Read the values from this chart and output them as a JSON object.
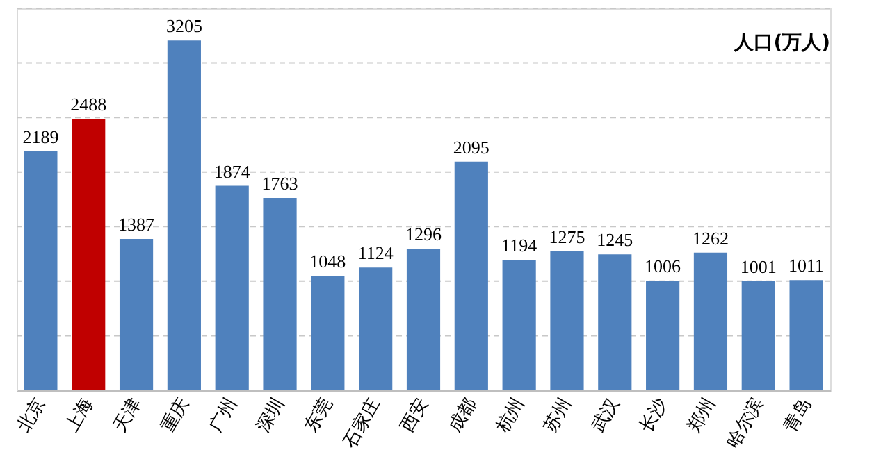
{
  "chart_data": {
    "type": "bar",
    "categories": [
      "北京",
      "上海",
      "天津",
      "重庆",
      "广州",
      "深圳",
      "东莞",
      "石家庄",
      "西安",
      "成都",
      "杭州",
      "苏州",
      "武汉",
      "长沙",
      "郑州",
      "哈尔滨",
      "青岛"
    ],
    "values": [
      2189,
      2488,
      1387,
      3205,
      1874,
      1763,
      1048,
      1124,
      1296,
      2095,
      1194,
      1275,
      1245,
      1006,
      1262,
      1001,
      1011
    ],
    "colors": [
      "#4f81bd",
      "#c00000",
      "#4f81bd",
      "#4f81bd",
      "#4f81bd",
      "#4f81bd",
      "#4f81bd",
      "#4f81bd",
      "#4f81bd",
      "#4f81bd",
      "#4f81bd",
      "#4f81bd",
      "#4f81bd",
      "#4f81bd",
      "#4f81bd",
      "#4f81bd",
      "#4f81bd"
    ],
    "annotations": [
      "人口(万人)"
    ],
    "ylim": [
      0,
      3500
    ],
    "yticks": [
      {
        "value": 0,
        "label": null
      },
      {
        "value": 500,
        "label": null
      },
      {
        "value": 1000,
        "label": null
      },
      {
        "value": 1500,
        "label": null
      },
      {
        "value": 2000,
        "label": null
      },
      {
        "value": 2500,
        "label": null
      },
      {
        "value": 3000,
        "label": null
      },
      {
        "value": 3500,
        "label": null
      }
    ],
    "grid": "y",
    "data_labels": true,
    "tick_labels": "x"
  }
}
